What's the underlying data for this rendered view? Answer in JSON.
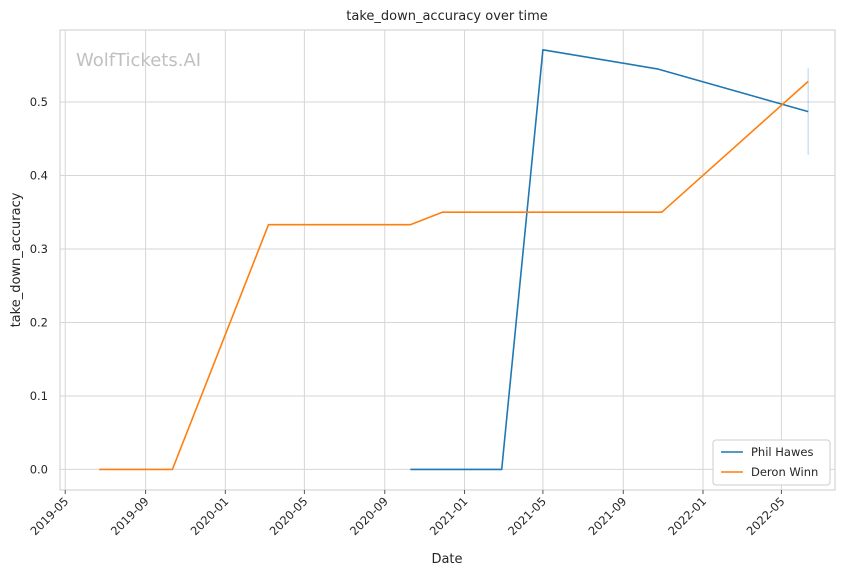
{
  "watermark": "WolfTickets.AI",
  "chart_data": {
    "type": "line",
    "title": "take_down_accuracy over time",
    "xlabel": "Date",
    "ylabel": "take_down_accuracy",
    "xlim": [
      "2019-04-23",
      "2022-07-22"
    ],
    "ylim": [
      -0.028,
      0.598
    ],
    "x_ticks": [
      "2019-05",
      "2019-09",
      "2020-01",
      "2020-05",
      "2020-09",
      "2021-01",
      "2021-05",
      "2021-09",
      "2022-01",
      "2022-05"
    ],
    "y_ticks": [
      "0.0",
      "0.1",
      "0.2",
      "0.3",
      "0.4",
      "0.5"
    ],
    "grid": true,
    "legend_position": "bottom-right",
    "series": [
      {
        "name": "Phil Hawes",
        "color": "#1f77b4",
        "points": [
          {
            "x": "2020-10-10",
            "y": 0.0
          },
          {
            "x": "2021-02-27",
            "y": 0.0
          },
          {
            "x": "2021-05-01",
            "y": 0.571
          },
          {
            "x": "2021-10-23",
            "y": 0.545
          },
          {
            "x": "2022-06-11",
            "y": 0.487
          }
        ],
        "error_bar": {
          "x": "2022-06-11",
          "low": 0.428,
          "high": 0.546
        }
      },
      {
        "name": "Deron Winn",
        "color": "#ff7f0e",
        "points": [
          {
            "x": "2019-06-22",
            "y": 0.0
          },
          {
            "x": "2019-10-12",
            "y": 0.0
          },
          {
            "x": "2020-03-07",
            "y": 0.333
          },
          {
            "x": "2020-10-10",
            "y": 0.333
          },
          {
            "x": "2020-11-28",
            "y": 0.35
          },
          {
            "x": "2021-10-30",
            "y": 0.35
          },
          {
            "x": "2022-06-11",
            "y": 0.528
          }
        ]
      }
    ]
  }
}
